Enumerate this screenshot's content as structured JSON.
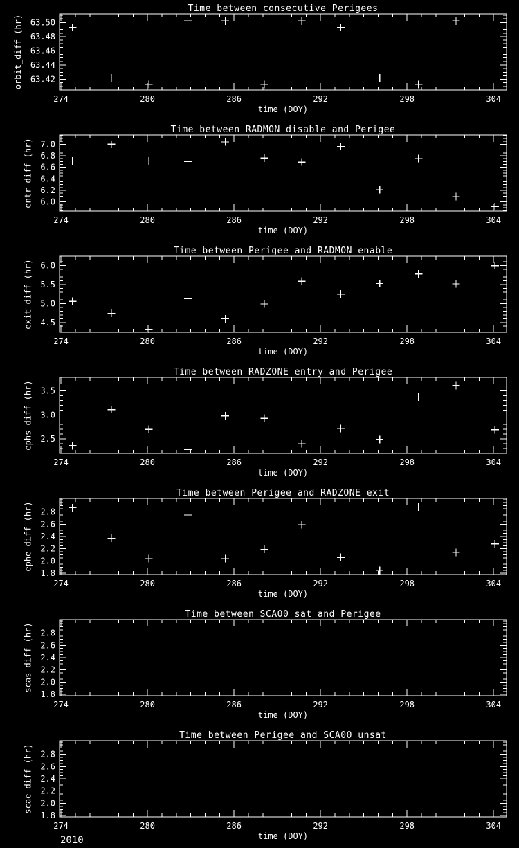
{
  "page": {
    "background": "#000000",
    "foreground": "#ffffff",
    "footer_year": "2010",
    "marker_symbol": "+"
  },
  "chart_data": [
    {
      "type": "scatter",
      "title": "Time between consecutive Perigees",
      "xlabel": "time (DOY)",
      "ylabel": "orbit_diff (hr)",
      "xlim": [
        273.9,
        304.9
      ],
      "ylim": [
        63.405,
        63.512
      ],
      "x_major_ticks": [
        274,
        280,
        286,
        292,
        298,
        304
      ],
      "x_tick_labels": [
        "274",
        "280",
        "286",
        "292",
        "298",
        "304"
      ],
      "x_minor_step": 1,
      "y_major_ticks": [
        63.42,
        63.44,
        63.46,
        63.48,
        63.5
      ],
      "y_tick_labels": [
        "63.42",
        "63.44",
        "63.46",
        "63.48",
        "63.50"
      ],
      "y_minor_step": 0.005,
      "grid": false,
      "marker": "+",
      "x": [
        274.8,
        277.5,
        280.1,
        282.8,
        285.4,
        288.1,
        290.7,
        293.4,
        296.1,
        298.8,
        301.4
      ],
      "y": [
        63.493,
        63.422,
        63.413,
        63.502,
        63.502,
        63.413,
        63.502,
        63.493,
        63.422,
        63.413,
        63.502
      ]
    },
    {
      "type": "scatter",
      "title": "Time between RADMON disable and Perigee",
      "xlabel": "time (DOY)",
      "ylabel": "entr_diff (hr)",
      "xlim": [
        273.9,
        304.9
      ],
      "ylim": [
        5.84,
        7.16
      ],
      "x_major_ticks": [
        274,
        280,
        286,
        292,
        298,
        304
      ],
      "x_tick_labels": [
        "274",
        "280",
        "286",
        "292",
        "298",
        "304"
      ],
      "x_minor_step": 1,
      "y_major_ticks": [
        6.0,
        6.2,
        6.4,
        6.6,
        6.8,
        7.0
      ],
      "y_tick_labels": [
        "6.0",
        "6.2",
        "6.4",
        "6.6",
        "6.8",
        "7.0"
      ],
      "y_minor_step": 0.05,
      "grid": false,
      "marker": "+",
      "x": [
        274.8,
        277.5,
        280.1,
        282.8,
        285.4,
        288.1,
        290.7,
        293.4,
        296.1,
        298.8,
        301.4,
        304.1
      ],
      "y": [
        6.71,
        7.0,
        6.71,
        6.7,
        7.04,
        6.76,
        6.69,
        6.96,
        6.21,
        6.75,
        6.09,
        5.92
      ]
    },
    {
      "type": "scatter",
      "title": "Time between Perigee and RADMON enable",
      "xlabel": "time (DOY)",
      "ylabel": "exit_diff (hr)",
      "xlim": [
        273.9,
        304.9
      ],
      "ylim": [
        4.24,
        6.25
      ],
      "x_major_ticks": [
        274,
        280,
        286,
        292,
        298,
        304
      ],
      "x_tick_labels": [
        "274",
        "280",
        "286",
        "292",
        "298",
        "304"
      ],
      "x_minor_step": 1,
      "y_major_ticks": [
        4.5,
        5.0,
        5.5,
        6.0
      ],
      "y_tick_labels": [
        "4.5",
        "5.0",
        "5.5",
        "6.0"
      ],
      "y_minor_step": 0.1,
      "grid": false,
      "marker": "+",
      "x": [
        274.8,
        277.5,
        280.1,
        282.8,
        285.4,
        288.1,
        290.7,
        293.4,
        296.1,
        298.8,
        301.4,
        304.1
      ],
      "y": [
        5.06,
        4.74,
        4.32,
        5.13,
        4.6,
        4.99,
        5.59,
        5.25,
        5.53,
        5.78,
        5.52,
        6.0
      ]
    },
    {
      "type": "scatter",
      "title": "Time between RADZONE entry and Perigee",
      "xlabel": "time (DOY)",
      "ylabel": "ephs_diff (hr)",
      "xlim": [
        273.9,
        304.9
      ],
      "ylim": [
        2.2,
        3.78
      ],
      "x_major_ticks": [
        274,
        280,
        286,
        292,
        298,
        304
      ],
      "x_tick_labels": [
        "274",
        "280",
        "286",
        "292",
        "298",
        "304"
      ],
      "x_minor_step": 1,
      "y_major_ticks": [
        2.5,
        3.0,
        3.5
      ],
      "y_tick_labels": [
        "2.5",
        "3.0",
        "3.5"
      ],
      "y_minor_step": 0.1,
      "grid": false,
      "marker": "+",
      "x": [
        274.8,
        277.5,
        280.1,
        282.8,
        285.4,
        288.1,
        290.7,
        293.4,
        296.1,
        298.8,
        301.4,
        304.1
      ],
      "y": [
        2.36,
        3.11,
        2.7,
        2.28,
        2.98,
        2.93,
        2.4,
        2.72,
        2.49,
        3.37,
        3.61,
        2.69
      ]
    },
    {
      "type": "scatter",
      "title": "Time between Perigee and RADZONE exit",
      "xlabel": "time (DOY)",
      "ylabel": "ephe_diff (hr)",
      "xlim": [
        273.9,
        304.9
      ],
      "ylim": [
        1.78,
        3.02
      ],
      "x_major_ticks": [
        274,
        280,
        286,
        292,
        298,
        304
      ],
      "x_tick_labels": [
        "274",
        "280",
        "286",
        "292",
        "298",
        "304"
      ],
      "x_minor_step": 1,
      "y_major_ticks": [
        1.8,
        2.0,
        2.2,
        2.4,
        2.6,
        2.8
      ],
      "y_tick_labels": [
        "1.8",
        "2.0",
        "2.2",
        "2.4",
        "2.6",
        "2.8"
      ],
      "y_minor_step": 0.05,
      "grid": false,
      "marker": "+",
      "x": [
        274.8,
        277.5,
        280.1,
        282.8,
        285.4,
        288.1,
        290.7,
        293.4,
        296.1,
        298.8,
        301.4,
        304.1
      ],
      "y": [
        2.87,
        2.37,
        2.04,
        2.75,
        2.04,
        2.19,
        2.59,
        2.06,
        1.85,
        2.88,
        2.14,
        2.28
      ]
    },
    {
      "type": "scatter",
      "title": "Time between SCA00 sat and Perigee",
      "xlabel": "time (DOY)",
      "ylabel": "scas_diff (hr)",
      "xlim": [
        273.9,
        304.9
      ],
      "ylim": [
        1.78,
        3.02
      ],
      "x_major_ticks": [
        274,
        280,
        286,
        292,
        298,
        304
      ],
      "x_tick_labels": [
        "274",
        "280",
        "286",
        "292",
        "298",
        "304"
      ],
      "x_minor_step": 1,
      "y_major_ticks": [
        1.8,
        2.0,
        2.2,
        2.4,
        2.6,
        2.8
      ],
      "y_tick_labels": [
        "1.8",
        "2.0",
        "2.2",
        "2.4",
        "2.6",
        "2.8"
      ],
      "y_minor_step": 0.05,
      "grid": false,
      "marker": "+",
      "x": [],
      "y": []
    },
    {
      "type": "scatter",
      "title": "Time between Perigee and SCA00 unsat",
      "xlabel": "time (DOY)",
      "ylabel": "scae_diff (hr)",
      "xlim": [
        273.9,
        304.9
      ],
      "ylim": [
        1.78,
        3.02
      ],
      "x_major_ticks": [
        274,
        280,
        286,
        292,
        298,
        304
      ],
      "x_tick_labels": [
        "274",
        "280",
        "286",
        "292",
        "298",
        "304"
      ],
      "x_minor_step": 1,
      "y_major_ticks": [
        1.8,
        2.0,
        2.2,
        2.4,
        2.6,
        2.8
      ],
      "y_tick_labels": [
        "1.8",
        "2.0",
        "2.2",
        "2.4",
        "2.6",
        "2.8"
      ],
      "y_minor_step": 0.05,
      "grid": false,
      "marker": "+",
      "x": [],
      "y": []
    }
  ]
}
